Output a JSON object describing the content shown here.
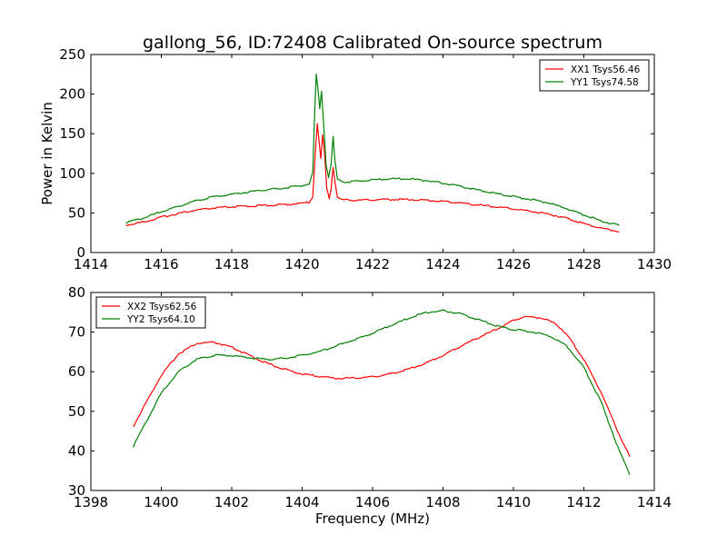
{
  "chart_data": [
    {
      "type": "line",
      "title": "gallong_56, ID:72408 Calibrated On-source spectrum",
      "xlabel": "",
      "ylabel": "Power in Kelvin",
      "xlim": [
        1414,
        1430
      ],
      "ylim": [
        0,
        250
      ],
      "xticks": [
        1414,
        1416,
        1418,
        1420,
        1422,
        1424,
        1426,
        1428,
        1430
      ],
      "yticks": [
        0,
        50,
        100,
        150,
        200,
        250
      ],
      "grid": false,
      "legend_position": "top-right",
      "series": [
        {
          "name": "XX1 Tsys56.46",
          "color": "#ff0000",
          "points": [
            [
              1415.0,
              34
            ],
            [
              1415.5,
              38
            ],
            [
              1416.0,
              44
            ],
            [
              1416.5,
              49
            ],
            [
              1417.0,
              53
            ],
            [
              1417.5,
              55.5
            ],
            [
              1418.0,
              57
            ],
            [
              1418.5,
              58
            ],
            [
              1419.0,
              59
            ],
            [
              1419.5,
              60
            ],
            [
              1420.0,
              61.5
            ],
            [
              1420.2,
              63
            ],
            [
              1420.3,
              70
            ],
            [
              1420.38,
              130
            ],
            [
              1420.43,
              162
            ],
            [
              1420.48,
              140
            ],
            [
              1420.53,
              118
            ],
            [
              1420.58,
              147
            ],
            [
              1420.63,
              128
            ],
            [
              1420.7,
              80
            ],
            [
              1420.77,
              68
            ],
            [
              1420.82,
              80
            ],
            [
              1420.88,
              107
            ],
            [
              1420.93,
              90
            ],
            [
              1421.0,
              70
            ],
            [
              1421.1,
              66
            ],
            [
              1421.5,
              65.5
            ],
            [
              1422.0,
              66
            ],
            [
              1422.5,
              66.5
            ],
            [
              1423.0,
              66.5
            ],
            [
              1423.5,
              65.5
            ],
            [
              1424.0,
              64
            ],
            [
              1424.5,
              62
            ],
            [
              1425.0,
              59.5
            ],
            [
              1425.5,
              57
            ],
            [
              1426.0,
              54.5
            ],
            [
              1426.5,
              51.5
            ],
            [
              1427.0,
              48
            ],
            [
              1427.5,
              43
            ],
            [
              1428.0,
              36
            ],
            [
              1428.5,
              30
            ],
            [
              1429.0,
              26
            ]
          ]
        },
        {
          "name": "YY1 Tsys74.58",
          "color": "#008000",
          "points": [
            [
              1415.0,
              37
            ],
            [
              1415.5,
              43
            ],
            [
              1416.0,
              51
            ],
            [
              1416.5,
              58
            ],
            [
              1417.0,
              65
            ],
            [
              1417.5,
              70
            ],
            [
              1418.0,
              73
            ],
            [
              1418.5,
              76
            ],
            [
              1419.0,
              79
            ],
            [
              1419.5,
              81
            ],
            [
              1420.0,
              84
            ],
            [
              1420.2,
              86
            ],
            [
              1420.3,
              100
            ],
            [
              1420.35,
              170
            ],
            [
              1420.4,
              224
            ],
            [
              1420.45,
              205
            ],
            [
              1420.5,
              180
            ],
            [
              1420.55,
              204
            ],
            [
              1420.6,
              170
            ],
            [
              1420.68,
              110
            ],
            [
              1420.75,
              95
            ],
            [
              1420.82,
              110
            ],
            [
              1420.88,
              145
            ],
            [
              1420.93,
              115
            ],
            [
              1421.0,
              92
            ],
            [
              1421.2,
              88
            ],
            [
              1421.5,
              89.5
            ],
            [
              1422.0,
              91
            ],
            [
              1422.5,
              92.5
            ],
            [
              1423.0,
              92.5
            ],
            [
              1423.5,
              90.5
            ],
            [
              1424.0,
              87
            ],
            [
              1424.5,
              83
            ],
            [
              1425.0,
              78
            ],
            [
              1425.5,
              74
            ],
            [
              1426.0,
              70
            ],
            [
              1426.5,
              66.5
            ],
            [
              1427.0,
              62
            ],
            [
              1427.5,
              55
            ],
            [
              1428.0,
              47
            ],
            [
              1428.5,
              39
            ],
            [
              1429.0,
              34
            ]
          ]
        }
      ]
    },
    {
      "type": "line",
      "title": "",
      "xlabel": "Frequency (MHz)",
      "ylabel": "",
      "xlim": [
        1398,
        1414
      ],
      "ylim": [
        30,
        80
      ],
      "xticks": [
        1398,
        1400,
        1402,
        1404,
        1406,
        1408,
        1410,
        1412,
        1414
      ],
      "yticks": [
        30,
        40,
        50,
        60,
        70,
        80
      ],
      "grid": false,
      "legend_position": "top-left",
      "series": [
        {
          "name": "XX2 Tsys62.56",
          "color": "#ff0000",
          "points": [
            [
              1399.2,
              46
            ],
            [
              1399.5,
              51
            ],
            [
              1400.0,
              59
            ],
            [
              1400.5,
              64.5
            ],
            [
              1401.0,
              67
            ],
            [
              1401.5,
              67.3
            ],
            [
              1402.0,
              66
            ],
            [
              1402.5,
              64
            ],
            [
              1403.0,
              62
            ],
            [
              1403.5,
              60.5
            ],
            [
              1404.0,
              59.3
            ],
            [
              1404.5,
              58.7
            ],
            [
              1405.0,
              58.2
            ],
            [
              1405.5,
              58.3
            ],
            [
              1406.0,
              58.6
            ],
            [
              1406.5,
              59.3
            ],
            [
              1407.0,
              60.5
            ],
            [
              1407.5,
              62
            ],
            [
              1408.0,
              64
            ],
            [
              1408.5,
              66.3
            ],
            [
              1409.0,
              68.5
            ],
            [
              1409.5,
              70.5
            ],
            [
              1410.0,
              72.8
            ],
            [
              1410.3,
              73.8
            ],
            [
              1410.8,
              73.5
            ],
            [
              1411.2,
              72
            ],
            [
              1411.5,
              69.5
            ],
            [
              1412.0,
              63
            ],
            [
              1412.5,
              54.5
            ],
            [
              1413.0,
              44
            ],
            [
              1413.3,
              38.5
            ]
          ]
        },
        {
          "name": "YY2 Tsys64.10",
          "color": "#008000",
          "points": [
            [
              1399.2,
              41
            ],
            [
              1399.5,
              46
            ],
            [
              1400.0,
              54.5
            ],
            [
              1400.5,
              60
            ],
            [
              1401.0,
              63
            ],
            [
              1401.5,
              64
            ],
            [
              1402.0,
              64
            ],
            [
              1402.5,
              63.4
            ],
            [
              1403.0,
              63
            ],
            [
              1403.5,
              63.3
            ],
            [
              1404.0,
              64
            ],
            [
              1404.5,
              65
            ],
            [
              1405.0,
              66.5
            ],
            [
              1405.5,
              68
            ],
            [
              1406.0,
              69.6
            ],
            [
              1406.5,
              71.5
            ],
            [
              1407.0,
              73.3
            ],
            [
              1407.5,
              74.8
            ],
            [
              1408.0,
              75.3
            ],
            [
              1408.5,
              74.5
            ],
            [
              1409.0,
              73
            ],
            [
              1409.5,
              71.5
            ],
            [
              1410.0,
              70.5
            ],
            [
              1410.5,
              70
            ],
            [
              1411.0,
              69
            ],
            [
              1411.5,
              66.5
            ],
            [
              1412.0,
              61
            ],
            [
              1412.5,
              52
            ],
            [
              1413.0,
              40
            ],
            [
              1413.3,
              34
            ]
          ]
        }
      ]
    }
  ]
}
